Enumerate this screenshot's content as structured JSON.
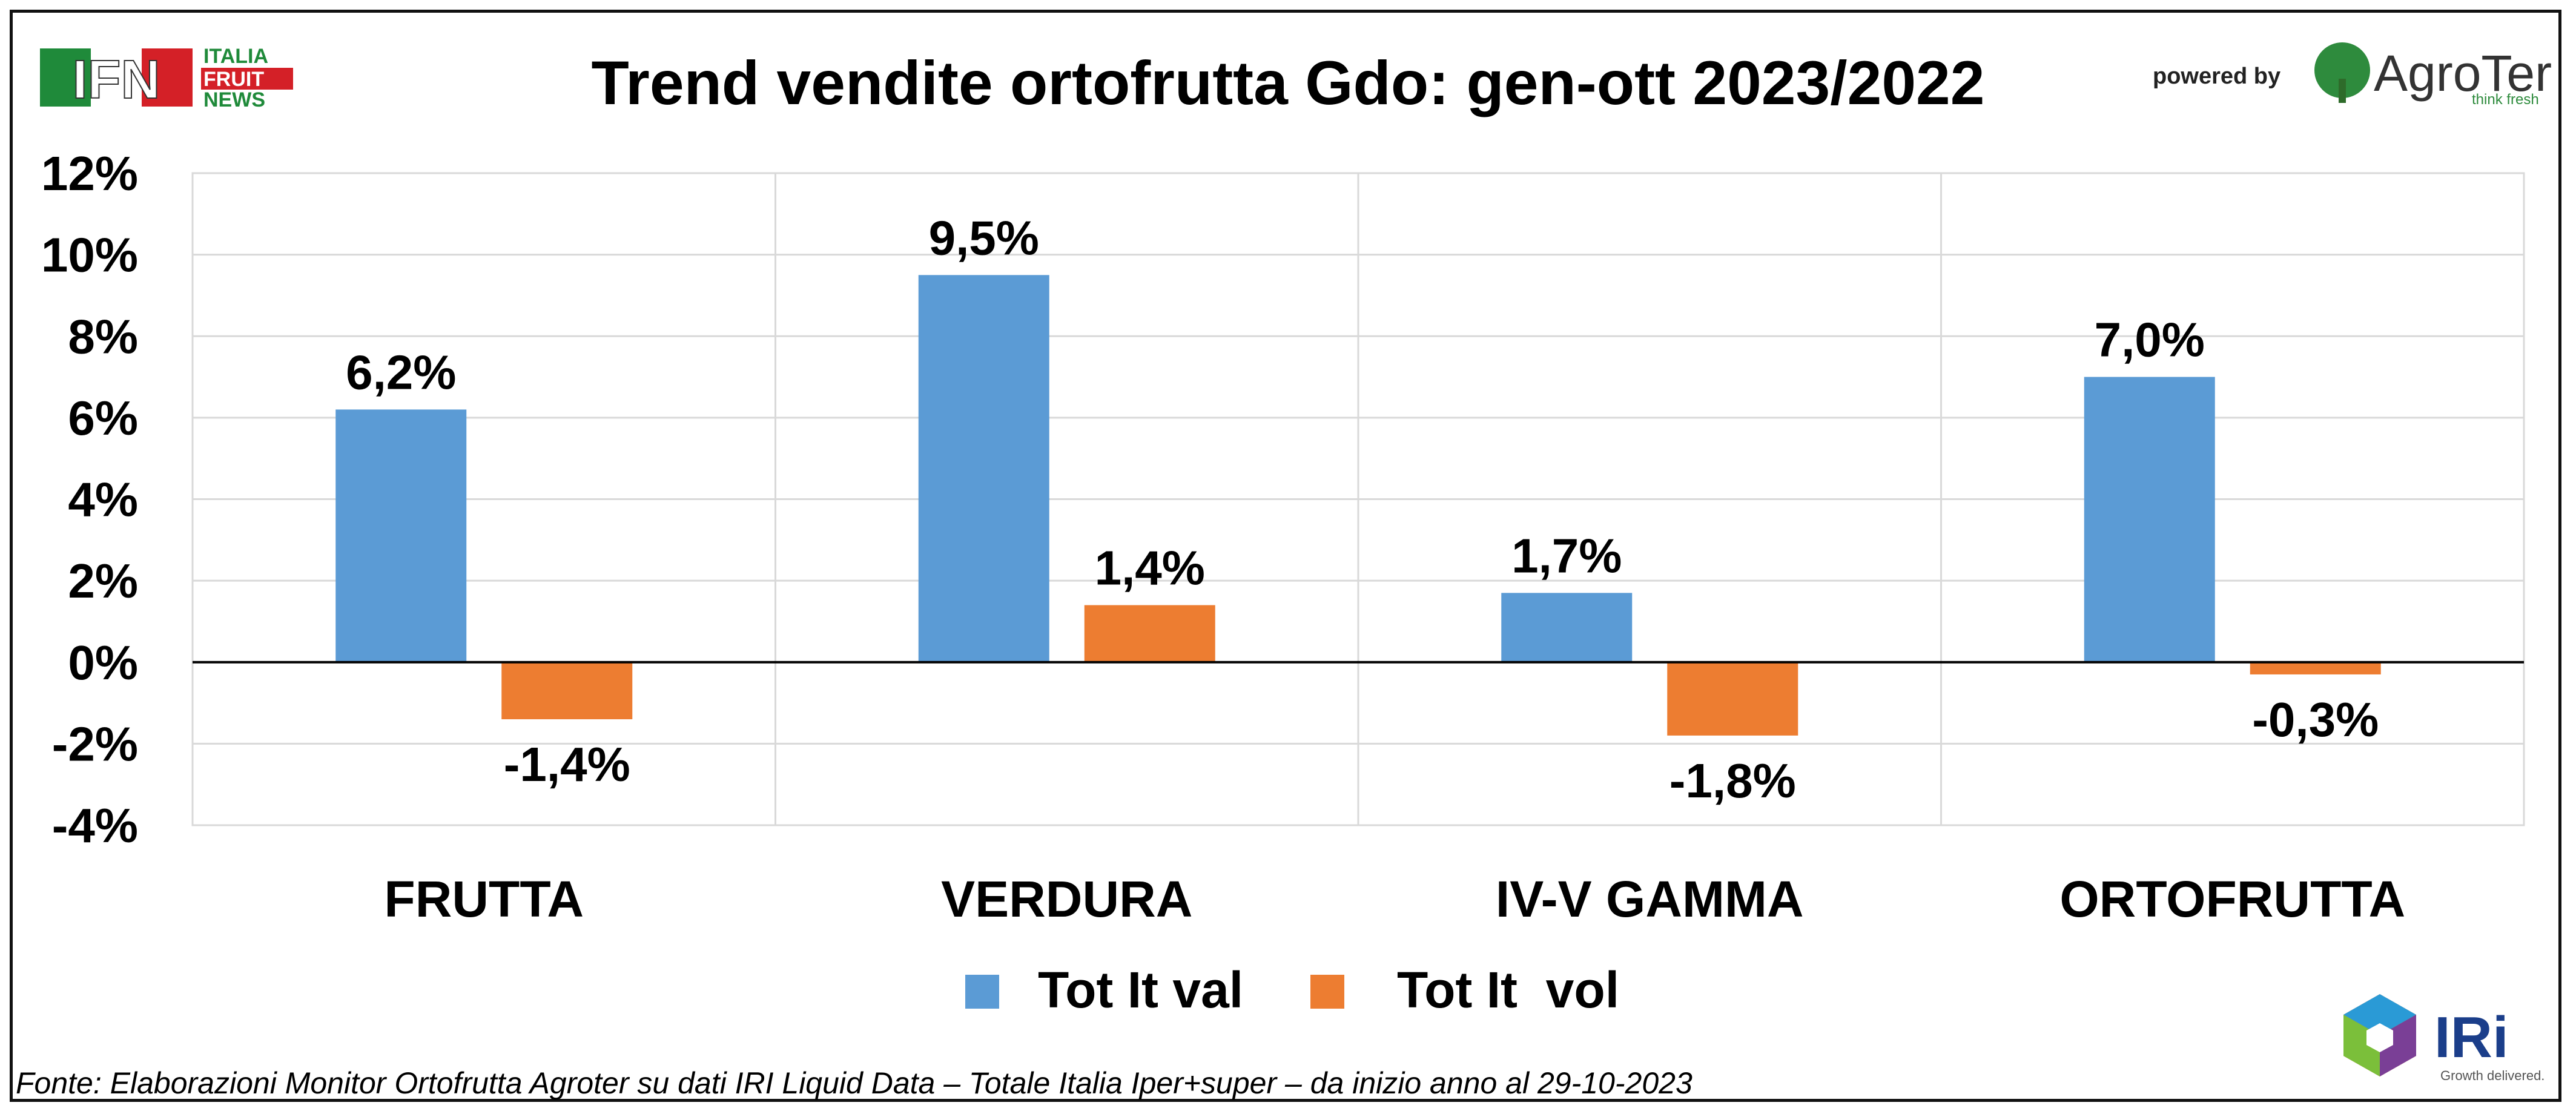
{
  "header": {
    "title": "Trend vendite ortofrutta Gdo: gen-ott 2023/2022",
    "powered_by": "powered by"
  },
  "logos": {
    "ifn": {
      "mark": "IFN",
      "line1": "ITALIA",
      "line2": "FRUIT",
      "line3": "NEWS"
    },
    "agroter": {
      "name": "AgroTer",
      "tagline": "think fresh"
    },
    "iri": {
      "name": "IRi",
      "tagline": "Growth delivered."
    }
  },
  "footer": {
    "source": "Fonte: Elaborazioni Monitor Ortofrutta Agroter su dati IRI Liquid Data – Totale Italia Iper+super –  da inizio anno al 29-10-2023"
  },
  "chart_data": {
    "type": "bar",
    "categories": [
      "FRUTTA",
      "VERDURA",
      "IV-V GAMMA",
      "ORTOFRUTTA"
    ],
    "series": [
      {
        "name": "Tot It val",
        "color": "#5B9BD5",
        "values": [
          6.2,
          9.5,
          1.7,
          7.0
        ],
        "labels": [
          "6,2%",
          "9,5%",
          "1,7%",
          "7,0%"
        ]
      },
      {
        "name": "Tot It  vol",
        "color": "#ED7D31",
        "values": [
          -1.4,
          1.4,
          -1.8,
          -0.3
        ],
        "labels": [
          "-1,4%",
          "1,4%",
          "-1,8%",
          "-0,3%"
        ]
      }
    ],
    "ylim": [
      -4,
      12
    ],
    "yticks": [
      12,
      10,
      8,
      6,
      4,
      2,
      0,
      -2,
      -4
    ],
    "ytick_labels": [
      "12%",
      "10%",
      "8%",
      "6%",
      "4%",
      "2%",
      "0%",
      "-2%",
      "-4%"
    ],
    "grid": true,
    "legend_position": "bottom"
  }
}
